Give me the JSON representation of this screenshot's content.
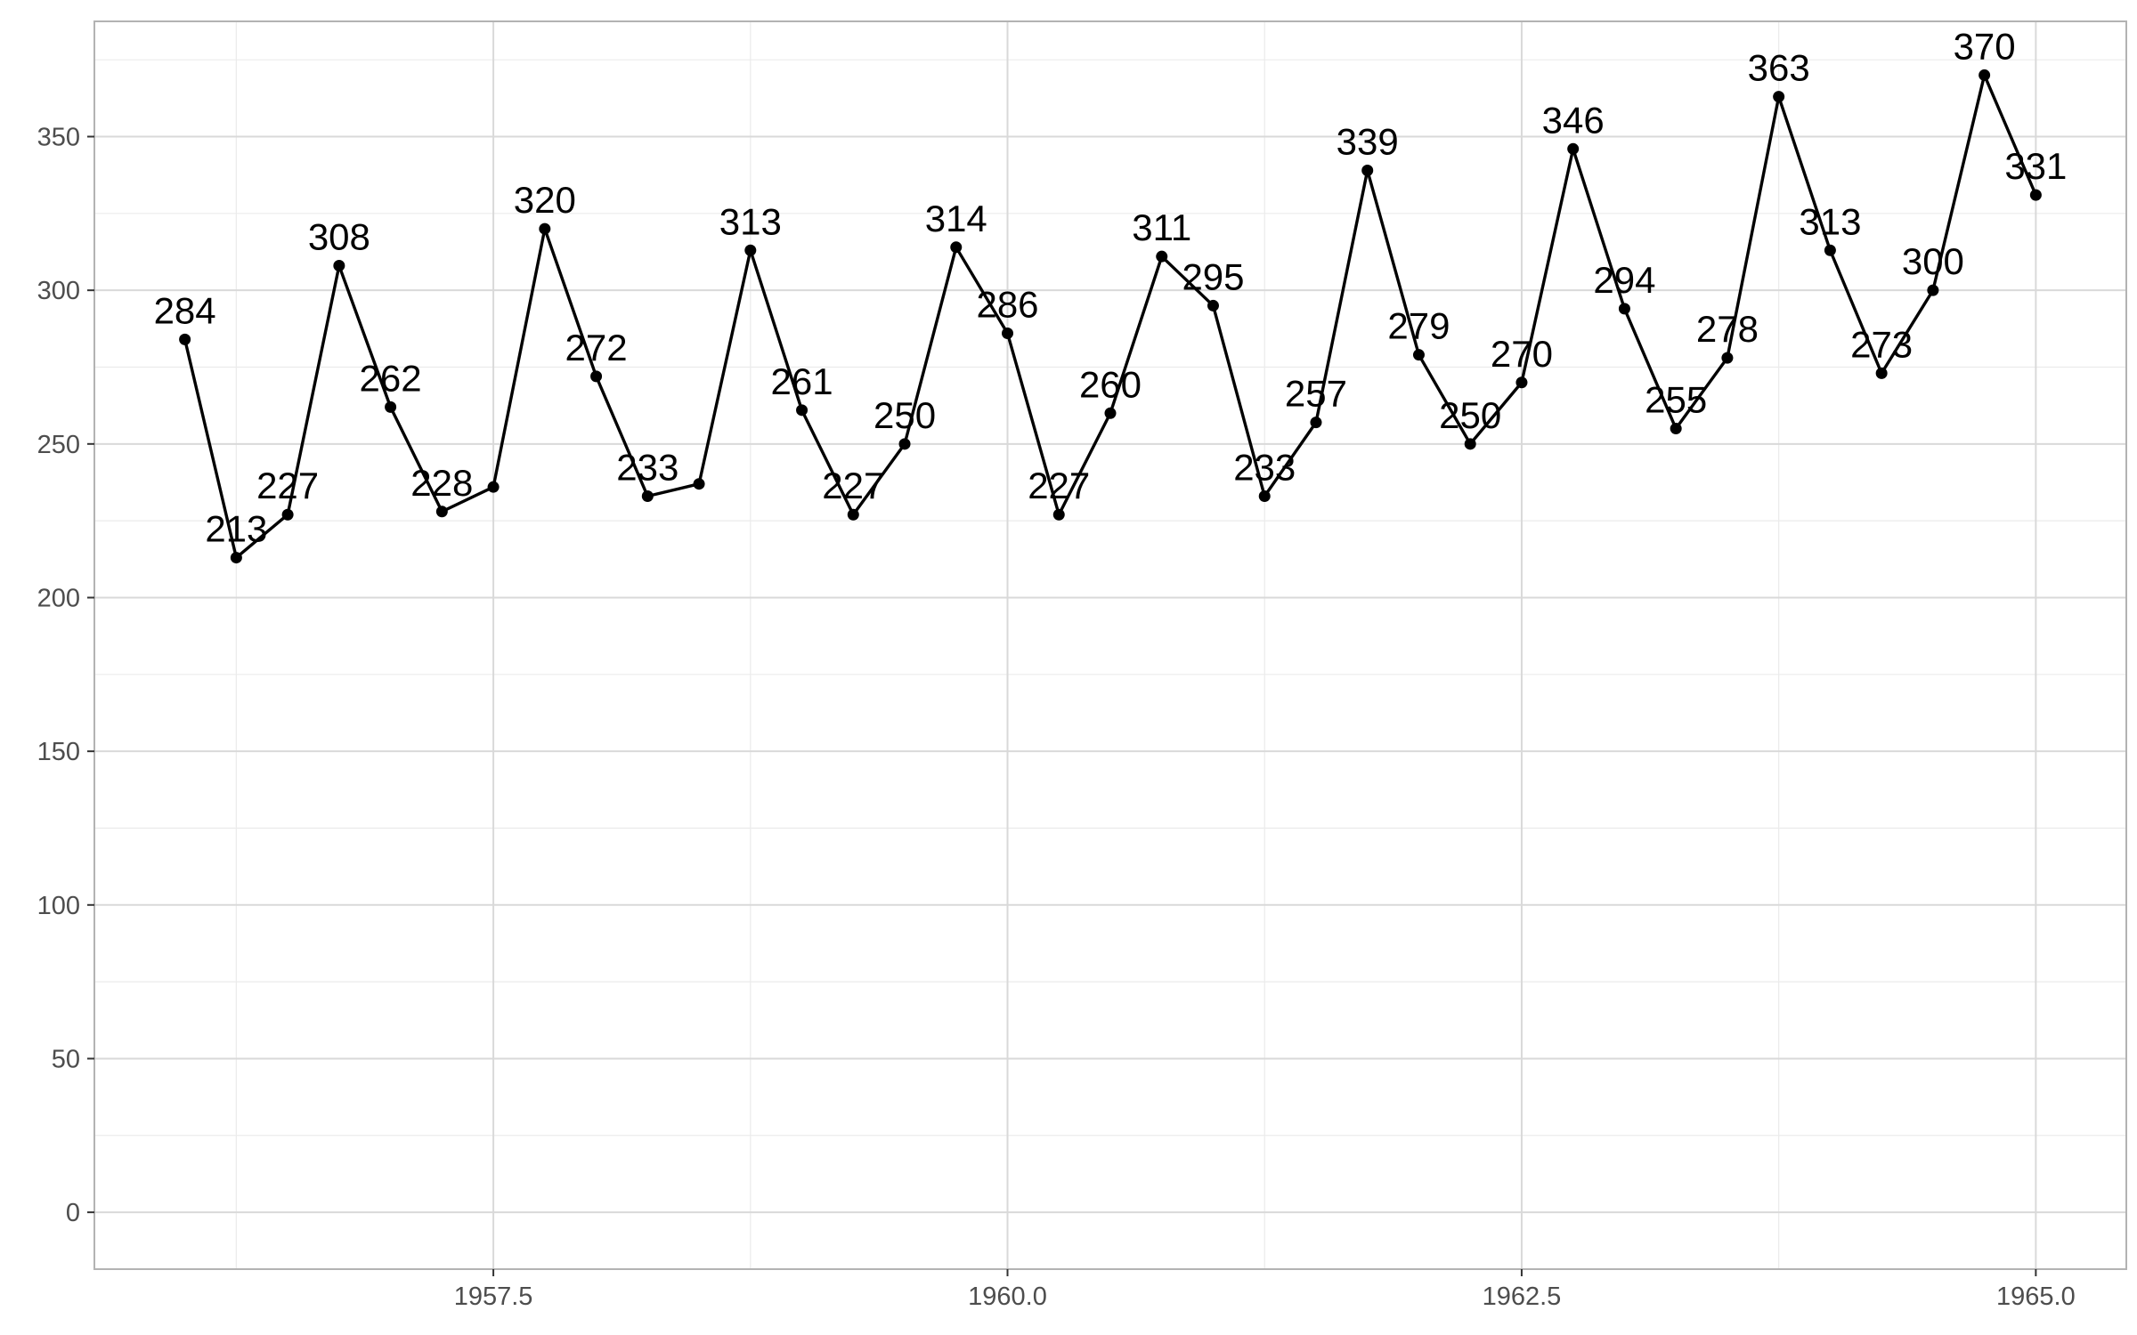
{
  "chart_data": {
    "type": "line",
    "title": "",
    "xlabel": "",
    "ylabel": "",
    "xlim": [
      1955.56,
      1965.44
    ],
    "ylim": [
      -18.5,
      387.5
    ],
    "x_ticks": [
      1957.5,
      1960.0,
      1962.5,
      1965.0
    ],
    "x_tick_labels": [
      "1957.5",
      "1960.0",
      "1962.5",
      "1965.0"
    ],
    "y_ticks": [
      0,
      50,
      100,
      150,
      200,
      250,
      300,
      350
    ],
    "y_tick_labels": [
      "0",
      "50",
      "100",
      "150",
      "200",
      "250",
      "300",
      "350"
    ],
    "grid": true,
    "legend": "none",
    "series": [
      {
        "x": [
          1956.0,
          1956.25,
          1956.5,
          1956.75,
          1957.0,
          1957.25,
          1957.5,
          1957.75,
          1958.0,
          1958.25,
          1958.5,
          1958.75,
          1959.0,
          1959.25,
          1959.5,
          1959.75,
          1960.0,
          1960.25,
          1960.5,
          1960.75,
          1961.0,
          1961.25,
          1961.5,
          1961.75,
          1962.0,
          1962.25,
          1962.5,
          1962.75,
          1963.0,
          1963.25,
          1963.5,
          1963.75,
          1964.0,
          1964.25,
          1964.5,
          1964.75,
          1965.0
        ],
        "values": [
          284,
          213,
          227,
          308,
          262,
          228,
          236,
          320,
          272,
          233,
          237,
          313,
          261,
          227,
          250,
          314,
          286,
          227,
          260,
          311,
          295,
          233,
          257,
          339,
          279,
          250,
          270,
          346,
          294,
          255,
          278,
          363,
          313,
          273,
          300,
          370,
          331
        ],
        "labels": [
          "284",
          "213",
          "227",
          "308",
          "262",
          "228",
          "",
          "320",
          "272",
          "233",
          "",
          "313",
          "261",
          "227",
          "250",
          "314",
          "286",
          "227",
          "260",
          "311",
          "295",
          "233",
          "257",
          "339",
          "279",
          "250",
          "270",
          "346",
          "294",
          "255",
          "278",
          "363",
          "313",
          "273",
          "300",
          "370",
          "331"
        ]
      }
    ],
    "colors": {
      "line": "#000000",
      "point": "#000000",
      "grid_major": "#d9d9d9",
      "grid_minor": "#ebebeb",
      "panel_border": "#b3b3b3",
      "tick_text": "#4d4d4d",
      "label_text": "#000000"
    }
  }
}
